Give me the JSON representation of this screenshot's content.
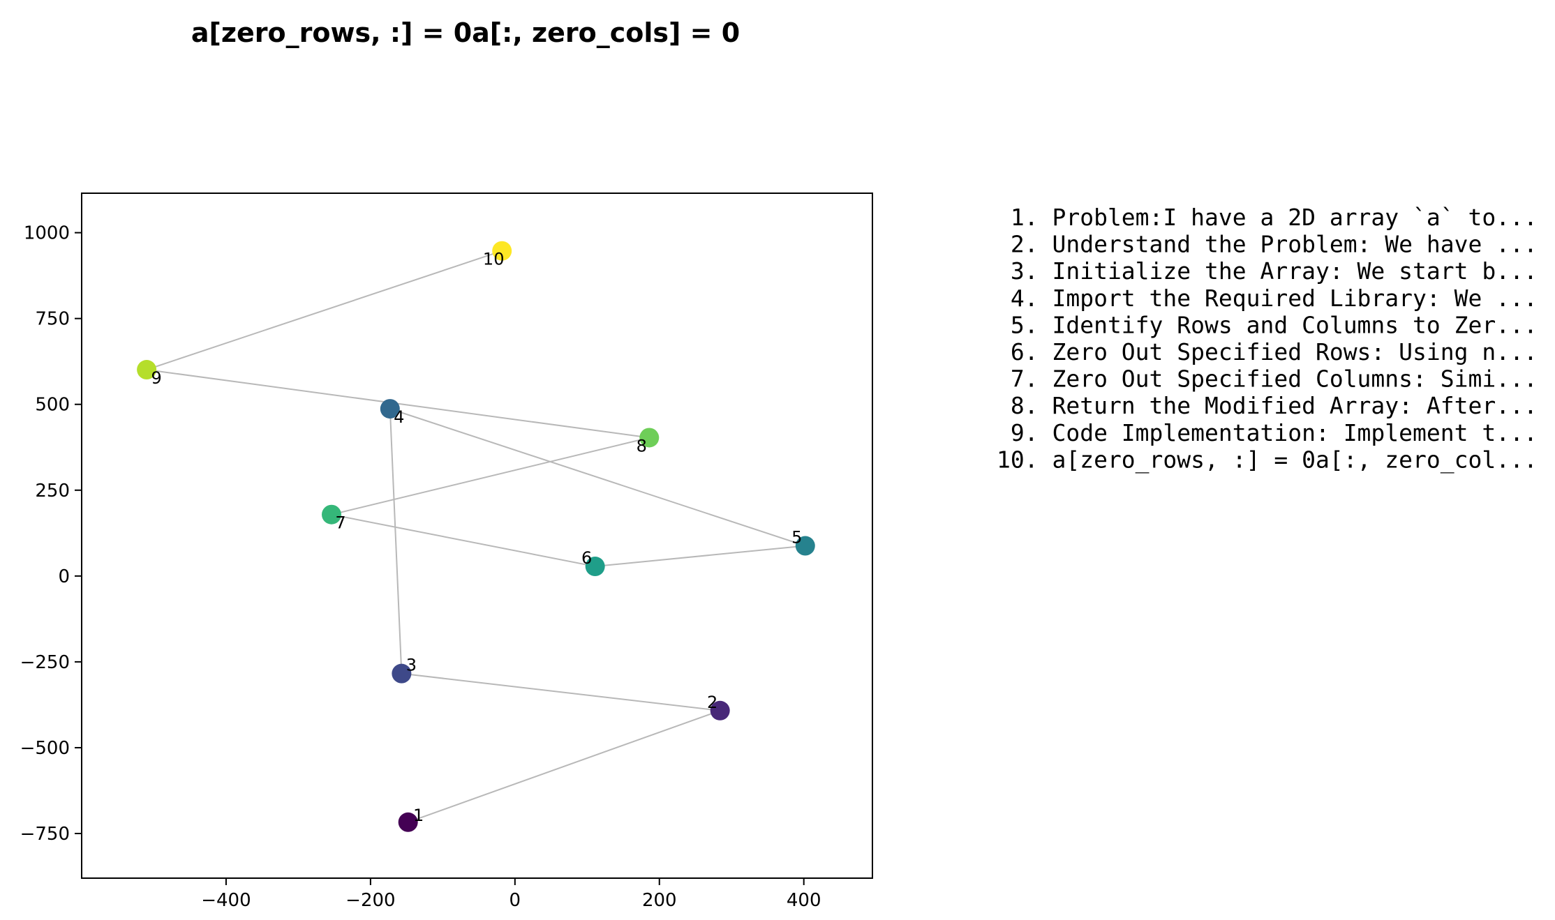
{
  "chart_data": {
    "type": "scatter",
    "title": "a[zero_rows, :] = 0a[:, zero_cols] = 0",
    "xlabel": "",
    "ylabel": "",
    "xlim": [
      -600,
      495
    ],
    "ylim": [
      -880,
      1115
    ],
    "xticks": [
      -400,
      -200,
      0,
      200,
      400
    ],
    "xtick_labels": [
      "−400",
      "−200",
      "0",
      "200",
      "400"
    ],
    "yticks": [
      -750,
      -500,
      -250,
      0,
      250,
      500,
      750,
      1000
    ],
    "ytick_labels": [
      "−750",
      "−500",
      "−250",
      "0",
      "250",
      "500",
      "750",
      "1000"
    ],
    "grid": false,
    "colormap": "viridis",
    "line_color": "#b8b8b8",
    "points": [
      {
        "label": "1",
        "x": -148,
        "y": -717,
        "color": "#440154"
      },
      {
        "label": "2",
        "x": 284,
        "y": -392,
        "color": "#482878"
      },
      {
        "label": "3",
        "x": -157,
        "y": -284,
        "color": "#3e4989"
      },
      {
        "label": "4",
        "x": -173,
        "y": 487,
        "color": "#31688e"
      },
      {
        "label": "5",
        "x": 402,
        "y": 88,
        "color": "#26828e"
      },
      {
        "label": "6",
        "x": 111,
        "y": 28,
        "color": "#1f9e89"
      },
      {
        "label": "7",
        "x": -254,
        "y": 179,
        "color": "#35b779"
      },
      {
        "label": "8",
        "x": 186,
        "y": 403,
        "color": "#6ece58"
      },
      {
        "label": "9",
        "x": -510,
        "y": 601,
        "color": "#b5de2b"
      },
      {
        "label": "10",
        "x": -18,
        "y": 947,
        "color": "#fde725"
      }
    ]
  },
  "steps": [
    " 1. Problem:I have a 2D array `a` to...",
    " 2. Understand the Problem: We have ...",
    " 3. Initialize the Array: We start b...",
    " 4. Import the Required Library: We ...",
    " 5. Identify Rows and Columns to Zer...",
    " 6. Zero Out Specified Rows: Using n...",
    " 7. Zero Out Specified Columns: Simi...",
    " 8. Return the Modified Array: After...",
    " 9. Code Implementation: Implement t...",
    "10. a[zero_rows, :] = 0a[:, zero_col..."
  ]
}
